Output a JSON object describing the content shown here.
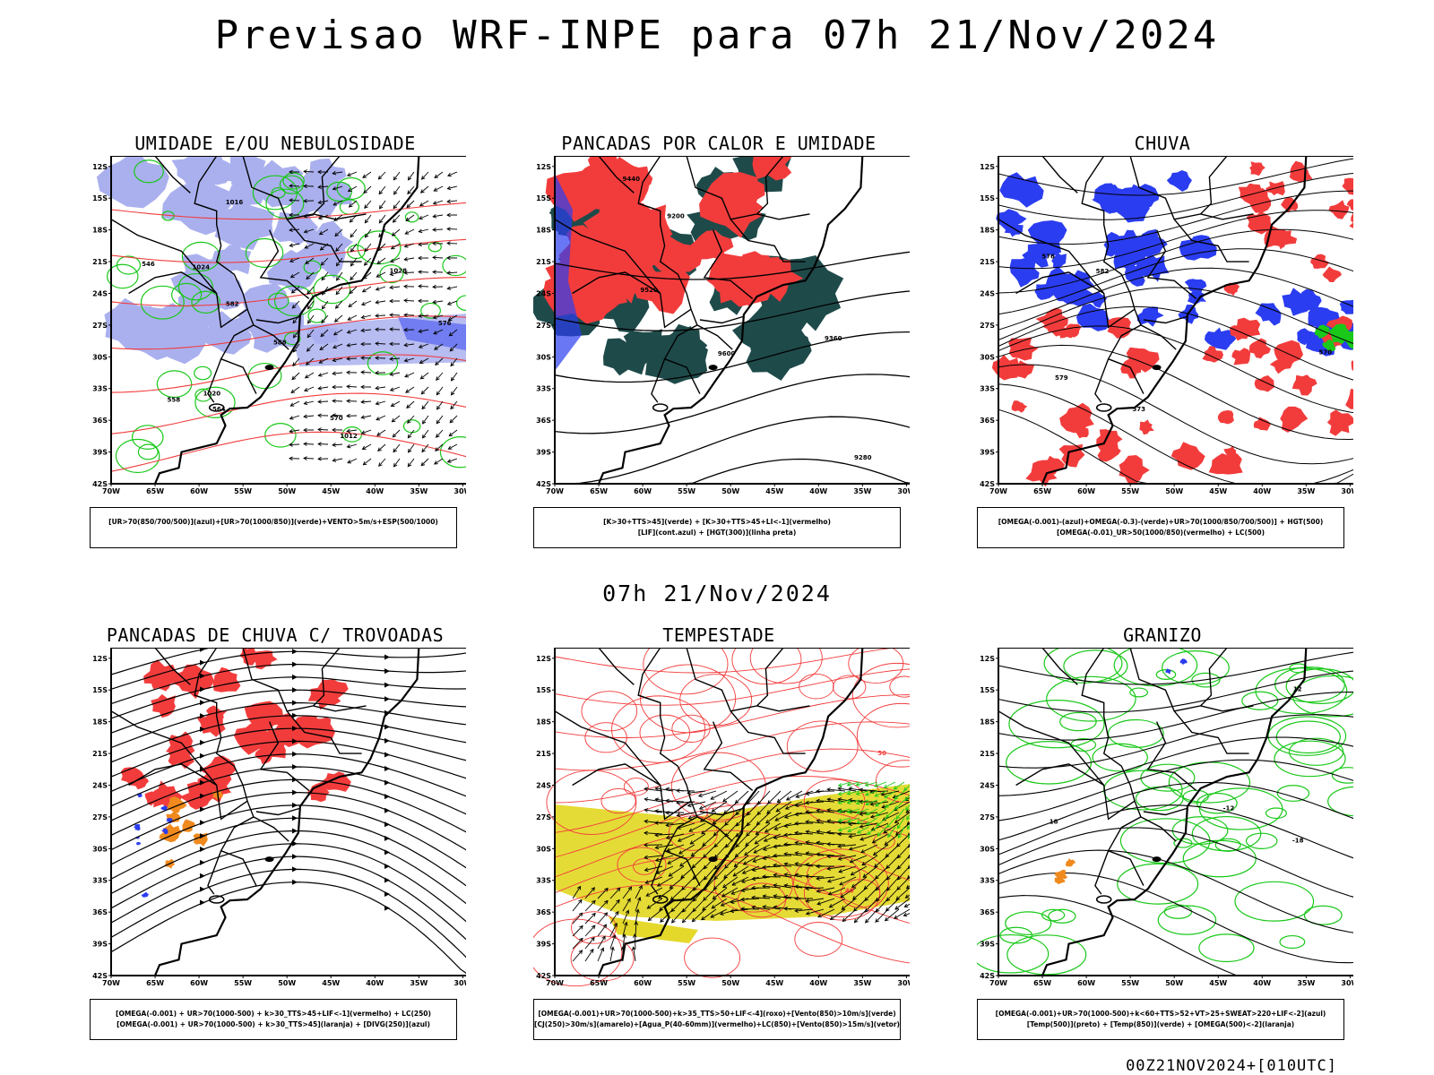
{
  "title": "Previsao WRF-INPE  para 07h 21/Nov/2024",
  "subtitle": "07h 21/Nov/2024",
  "footer": "00Z21NOV2024+[010UTC]",
  "axes": {
    "lat_labels": [
      "12S",
      "15S",
      "18S",
      "21S",
      "24S",
      "27S",
      "30S",
      "33S",
      "36S",
      "39S",
      "42S"
    ],
    "lon_labels": [
      "70W",
      "65W",
      "60W",
      "55W",
      "50W",
      "45W",
      "40W",
      "35W",
      "30W"
    ]
  },
  "colors": {
    "red": "#f23c3c",
    "blue": "#2b3df0",
    "green": "#19c819",
    "lavender": "#aab0ee",
    "darkgreen": "#1f4a4a",
    "yellow": "#e4d92b",
    "orange": "#f08a1e",
    "black": "#000000"
  },
  "panels": [
    {
      "id": "umidade",
      "title": "UMIDADE E/OU NEBULOSIDADE",
      "legend": [
        "[UR>70(850/700/500)](azul)+[UR>70(1000/850)](verde)+VENTO>5m/s+ESP(500/1000)"
      ],
      "contour_labels": [
        "1012",
        "1016",
        "1020",
        "1024",
        "1028",
        "570",
        "576",
        "582",
        "588",
        "564",
        "558",
        "546"
      ]
    },
    {
      "id": "pancadas_calor",
      "title": "PANCADAS POR CALOR E UMIDADE",
      "legend": [
        "[K>30+TTS>45](verde) + [K>30+TTS>45+LI<-1](vermelho)",
        "[LIF](cont.azul) + [HGT(300)](linha preta)"
      ],
      "contour_labels": [
        "9600",
        "9520",
        "9440",
        "9360",
        "9280",
        "9200"
      ]
    },
    {
      "id": "chuva",
      "title": "CHUVA",
      "legend": [
        "[OMEGA(-0.001)-(azul)+OMEGA(-0.3)-(verde)+UR>70(1000/850/700/500)] + HGT(500)",
        "[OMEGA(-0.01)_UR>50(1000/850)(vermelho) + LC(500)"
      ],
      "contour_labels": [
        "582",
        "579",
        "576",
        "573",
        "570"
      ]
    },
    {
      "id": "trovoadas",
      "title": "PANCADAS DE CHUVA C/ TROVOADAS",
      "legend": [
        "[OMEGA(-0.001) + UR>70(1000-500) + k>30_TTS>45+LIF<-1](vermelho) + LC(250)",
        "[OMEGA(-0.001) + UR>70(1000-500) + k>30_TTS>45](laranja) + [DIVG(250)](azul)"
      ],
      "contour_labels": []
    },
    {
      "id": "tempestade",
      "title": "TEMPESTADE",
      "legend": [
        "[OMEGA(-0.001)+UR>70(1000-500)+k>35_TTS>50+LIF<-4](roxo)+[Vento(850)>10m/s](verde)",
        "[CJ(250)>30m/s](amarelo)+[Agua_P(40-60mm)](vermelho)+LC(850)+[Vento(850)>15m/s](vetor)"
      ],
      "contour_labels": [
        "40",
        "50"
      ]
    },
    {
      "id": "granizo",
      "title": "GRANIZO",
      "legend": [
        "[OMEGA(-0.001)+UR>70(1000-500)+k<60+TTS>52+VT>25+SWEAT>220+LIF<-2](azul)",
        "[Temp(500)](preto) + [Temp(850)](verde) + [OMEGA(500)<-2](laranja)"
      ],
      "contour_labels": [
        "-12",
        "-18",
        "12",
        "18"
      ]
    }
  ]
}
